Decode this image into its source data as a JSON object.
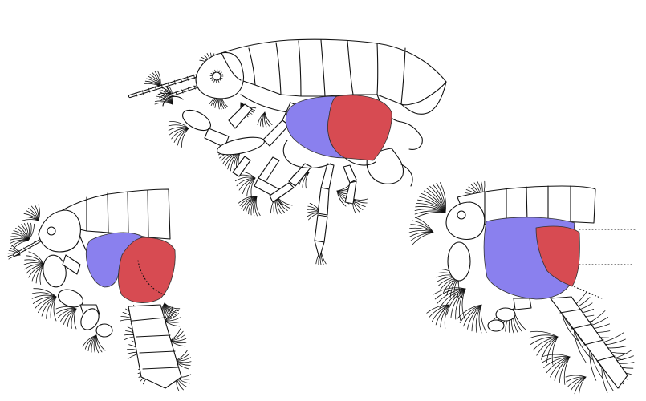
{
  "colors": {
    "highlight_blue": "#8a80ee",
    "highlight_red": "#d74b52",
    "outline": "#111111",
    "background": "#ffffff"
  }
}
